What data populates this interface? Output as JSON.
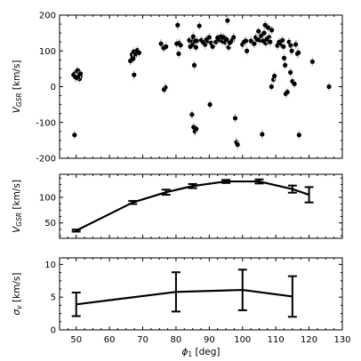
{
  "chart_data": [
    {
      "type": "scatter",
      "panel": "top",
      "ylabel_main": "V",
      "ylabel_sub": "GSR",
      "ylabel_unit": "[km/s]",
      "xlim": [
        45,
        130
      ],
      "ylim": [
        -200,
        200
      ],
      "xticks": [
        50,
        60,
        70,
        80,
        90,
        100,
        110,
        120,
        130
      ],
      "yticks": [
        -200,
        -100,
        0,
        100,
        200
      ],
      "grid": false,
      "marker_color": "#000000",
      "errorbar_color": "#bfbfbf",
      "points": [
        [
          49.2,
          33
        ],
        [
          49.6,
          36
        ],
        [
          50.0,
          30
        ],
        [
          50.3,
          38
        ],
        [
          50.6,
          34
        ],
        [
          50.9,
          41
        ],
        [
          51.2,
          28
        ],
        [
          51.0,
          22
        ],
        [
          50.4,
          45
        ],
        [
          49.8,
          27
        ],
        [
          50.7,
          31
        ],
        [
          51.3,
          36
        ],
        [
          50.2,
          25
        ],
        [
          49.5,
          -135
        ],
        [
          66.3,
          72
        ],
        [
          66.8,
          90
        ],
        [
          67.0,
          82
        ],
        [
          67.3,
          98
        ],
        [
          67.6,
          86
        ],
        [
          67.9,
          92
        ],
        [
          68.4,
          102
        ],
        [
          67.4,
          33
        ],
        [
          68.9,
          95
        ],
        [
          67.1,
          78
        ],
        [
          75.5,
          120
        ],
        [
          76.3,
          108
        ],
        [
          77.0,
          112
        ],
        [
          76.8,
          -2
        ],
        [
          76.4,
          -8
        ],
        [
          80.2,
          120
        ],
        [
          80.5,
          172
        ],
        [
          81.0,
          122
        ],
        [
          81.4,
          116
        ],
        [
          80.8,
          92
        ],
        [
          84.0,
          130
        ],
        [
          84.5,
          125
        ],
        [
          85.0,
          118
        ],
        [
          85.4,
          132
        ],
        [
          84.3,
          112
        ],
        [
          85.2,
          140
        ],
        [
          85.8,
          127
        ],
        [
          86.2,
          128
        ],
        [
          85.5,
          60
        ],
        [
          86.0,
          110
        ],
        [
          84.8,
          -78
        ],
        [
          85.3,
          -113
        ],
        [
          85.7,
          -125
        ],
        [
          86.1,
          -118
        ],
        [
          87.0,
          170
        ],
        [
          87.6,
          130
        ],
        [
          88.2,
          124
        ],
        [
          88.8,
          118
        ],
        [
          89.2,
          132
        ],
        [
          89.5,
          128
        ],
        [
          90.0,
          138
        ],
        [
          90.6,
          122
        ],
        [
          91.0,
          112
        ],
        [
          90.2,
          -50
        ],
        [
          92.0,
          125
        ],
        [
          92.5,
          137
        ],
        [
          93.0,
          131
        ],
        [
          93.5,
          140
        ],
        [
          94.0,
          127
        ],
        [
          94.3,
          138
        ],
        [
          94.8,
          124
        ],
        [
          95.2,
          132
        ],
        [
          95.5,
          185
        ],
        [
          95.8,
          110
        ],
        [
          96.2,
          123
        ],
        [
          97.0,
          130
        ],
        [
          97.3,
          138
        ],
        [
          97.8,
          -88
        ],
        [
          98.2,
          -155
        ],
        [
          98.5,
          -162
        ],
        [
          100.0,
          118
        ],
        [
          100.5,
          125
        ],
        [
          101.0,
          128
        ],
        [
          101.3,
          100
        ],
        [
          102.5,
          128
        ],
        [
          103.5,
          120
        ],
        [
          104.0,
          138
        ],
        [
          104.4,
          132
        ],
        [
          104.8,
          155
        ],
        [
          105.2,
          130
        ],
        [
          105.6,
          142
        ],
        [
          105.9,
          -133
        ],
        [
          106.2,
          128
        ],
        [
          106.5,
          150
        ],
        [
          106.8,
          172
        ],
        [
          107.0,
          122
        ],
        [
          107.3,
          133
        ],
        [
          107.7,
          165
        ],
        [
          108.0,
          138
        ],
        [
          108.3,
          125
        ],
        [
          108.7,
          0
        ],
        [
          108.8,
          158
        ],
        [
          109.3,
          20
        ],
        [
          109.6,
          30
        ],
        [
          110.5,
          115
        ],
        [
          111.0,
          125
        ],
        [
          111.5,
          120
        ],
        [
          112.0,
          130
        ],
        [
          112.3,
          112
        ],
        [
          112.5,
          80
        ],
        [
          112.8,
          60
        ],
        [
          113.0,
          -20
        ],
        [
          113.5,
          -15
        ],
        [
          114.0,
          125
        ],
        [
          114.5,
          115
        ],
        [
          114.8,
          100
        ],
        [
          114.4,
          40
        ],
        [
          115.0,
          15
        ],
        [
          115.6,
          8
        ],
        [
          116.0,
          118
        ],
        [
          116.5,
          92
        ],
        [
          116.8,
          95
        ],
        [
          117.0,
          -135
        ],
        [
          121.0,
          70
        ],
        [
          126.0,
          0
        ]
      ]
    },
    {
      "type": "line",
      "panel": "middle",
      "ylabel_main": "V",
      "ylabel_sub": "GSR",
      "ylabel_unit": "[km/s]",
      "xlim": [
        45,
        130
      ],
      "ylim": [
        20,
        145
      ],
      "yticks": [
        50,
        100
      ],
      "grid": false,
      "line_color": "#000000",
      "x": [
        50,
        67,
        77,
        85,
        95,
        105,
        115,
        120
      ],
      "y": [
        35,
        90,
        110,
        122,
        131,
        131,
        116,
        105
      ],
      "yerr": [
        2,
        3,
        5,
        4,
        3,
        4,
        7,
        15
      ]
    },
    {
      "type": "line",
      "panel": "bottom",
      "ylabel_main": "σ",
      "ylabel_sub": "v",
      "ylabel_unit": "[km/s]",
      "xlabel_main": "ϕ",
      "xlabel_sub": "1",
      "xlabel_unit": "[deg]",
      "xlim": [
        45,
        130
      ],
      "ylim": [
        0,
        11
      ],
      "yticks": [
        0,
        5,
        10
      ],
      "grid": false,
      "line_color": "#000000",
      "x": [
        50,
        80,
        100,
        115
      ],
      "y": [
        3.9,
        5.8,
        6.1,
        5.1
      ],
      "yerr": [
        1.8,
        3.0,
        3.1,
        3.1
      ]
    }
  ]
}
